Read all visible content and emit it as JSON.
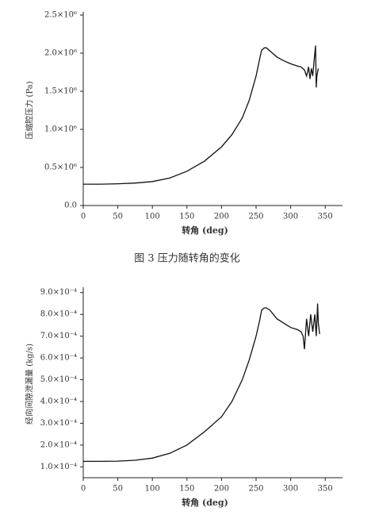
{
  "caption": "图 3   压力随转角的变化",
  "chart_data": [
    {
      "type": "line",
      "xlabel": "转角 (deg)",
      "ylabel": "压缩腔压力 (Pa)",
      "color": "#111111",
      "xlim": [
        0,
        375
      ],
      "xticks": [
        0,
        50,
        100,
        150,
        200,
        250,
        300,
        350
      ],
      "ylim": [
        0,
        2500000
      ],
      "yticks": [
        {
          "value": 0,
          "label": "0.0"
        },
        {
          "value": 500000,
          "label": "0.5×10⁶"
        },
        {
          "value": 1000000,
          "label": "1.0×10⁶"
        },
        {
          "value": 1500000,
          "label": "1.5×10⁶"
        },
        {
          "value": 2000000,
          "label": "2.0×10⁶"
        },
        {
          "value": 2500000,
          "label": "2.5×10⁶"
        }
      ],
      "x": [
        0,
        25,
        50,
        75,
        100,
        125,
        150,
        175,
        200,
        215,
        230,
        240,
        250,
        255,
        258,
        262,
        265,
        270,
        280,
        290,
        300,
        310,
        315,
        320,
        323,
        326,
        328,
        330,
        332,
        334,
        336,
        337,
        338,
        340
      ],
      "values": [
        280000,
        280000,
        285000,
        295000,
        315000,
        360000,
        450000,
        580000,
        770000,
        930000,
        1150000,
        1380000,
        1700000,
        1920000,
        2040000,
        2070000,
        2070000,
        2030000,
        1950000,
        1900000,
        1860000,
        1830000,
        1820000,
        1780000,
        1700000,
        1820000,
        1660000,
        1800000,
        1700000,
        1900000,
        2100000,
        1550000,
        1700000,
        1800000
      ]
    },
    {
      "type": "line",
      "xlabel": "转角 (deg)",
      "ylabel": "经向间隙泄漏量 (kg/s)",
      "color": "#111111",
      "xlim": [
        0,
        375
      ],
      "xticks": [
        0,
        50,
        100,
        150,
        200,
        250,
        300,
        350
      ],
      "ylim": [
        5e-05,
        0.00091
      ],
      "yticks": [
        {
          "value": 0.0001,
          "label": "1.0×10⁻⁴"
        },
        {
          "value": 0.0002,
          "label": "2.0×10⁻⁴"
        },
        {
          "value": 0.0003,
          "label": "3.0×10⁻⁴"
        },
        {
          "value": 0.0004,
          "label": "4.0×10⁻⁴"
        },
        {
          "value": 0.0005,
          "label": "5.0×10⁻⁴"
        },
        {
          "value": 0.0006,
          "label": "6.0×10⁻⁴"
        },
        {
          "value": 0.0007,
          "label": "7.0×10⁻⁴"
        },
        {
          "value": 0.0008,
          "label": "8.0×10⁻⁴"
        },
        {
          "value": 0.0009,
          "label": "9.0×10⁻⁴"
        }
      ],
      "x": [
        0,
        25,
        50,
        75,
        100,
        125,
        150,
        175,
        200,
        215,
        230,
        240,
        250,
        255,
        258,
        262,
        265,
        270,
        280,
        290,
        300,
        310,
        315,
        318,
        320,
        323,
        326,
        329,
        332,
        335,
        337,
        339,
        340,
        342
      ],
      "values": [
        0.000125,
        0.000125,
        0.000126,
        0.00013,
        0.00014,
        0.000162,
        0.0002,
        0.00026,
        0.00033,
        0.0004,
        0.0005,
        0.00059,
        0.0007,
        0.00077,
        0.00082,
        0.00083,
        0.00083,
        0.00082,
        0.00078,
        0.00076,
        0.00074,
        0.00073,
        0.00072,
        0.0007,
        0.00064,
        0.00078,
        0.0007,
        0.0008,
        0.00072,
        0.0008,
        0.0007,
        0.00085,
        0.00076,
        0.00071
      ]
    }
  ]
}
